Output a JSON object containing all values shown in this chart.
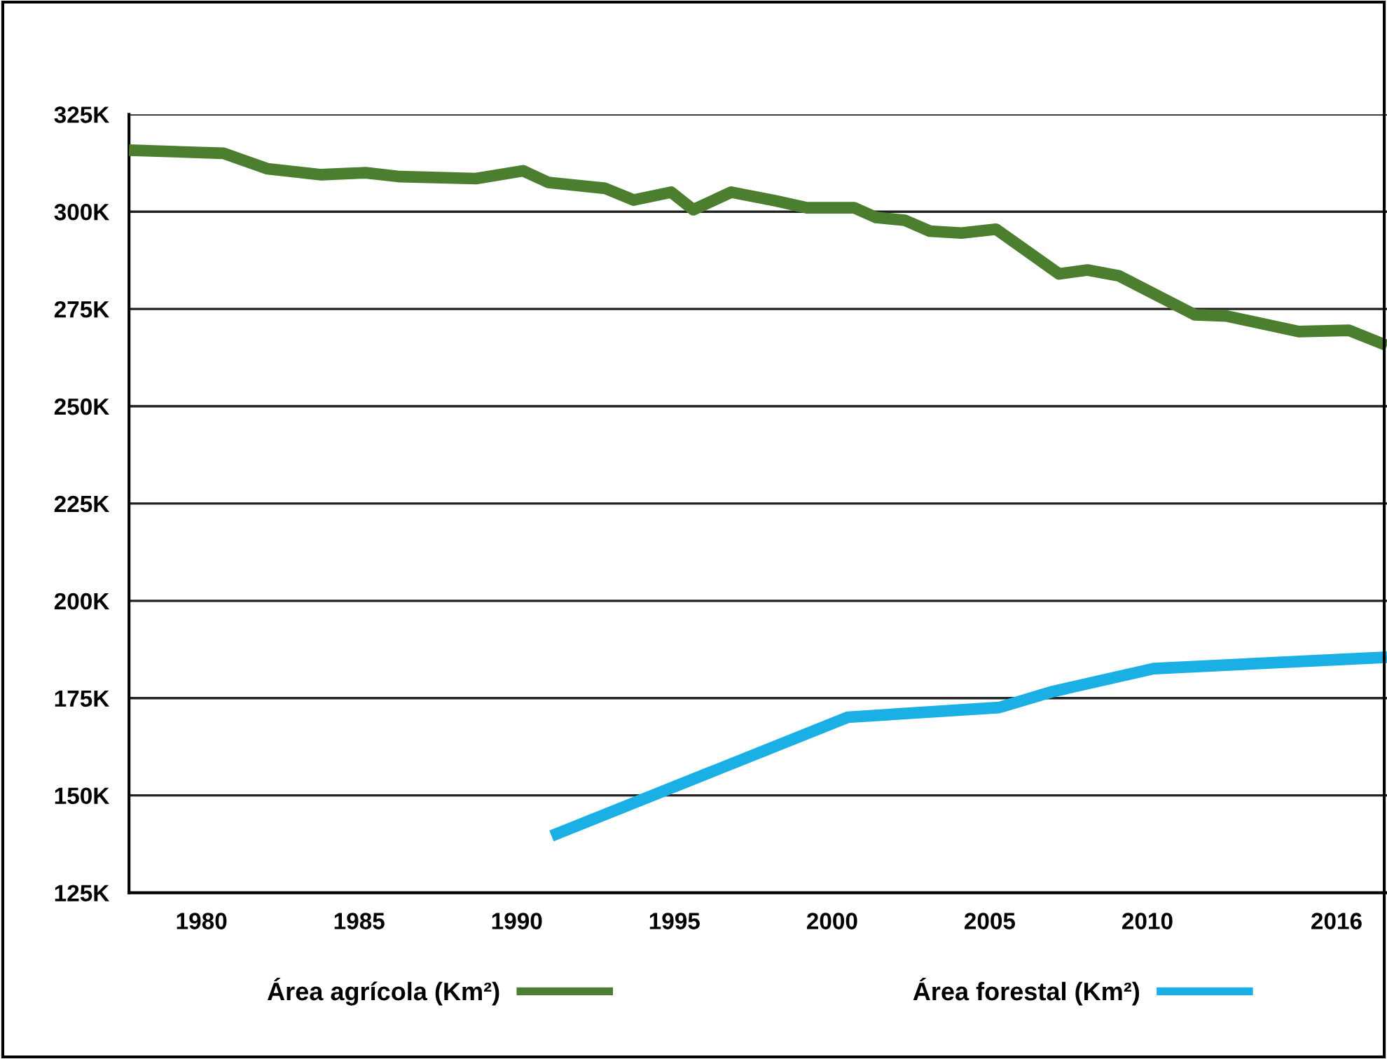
{
  "chart_data": {
    "type": "line",
    "xlim": [
      1977.7,
      2017.6
    ],
    "ylim": [
      125000,
      325000
    ],
    "xticks": [
      1980,
      1985,
      1990,
      1995,
      2000,
      2005,
      2010,
      2016
    ],
    "yticks": [
      {
        "value": 125000,
        "label": "125K"
      },
      {
        "value": 150000,
        "label": "150K"
      },
      {
        "value": 175000,
        "label": "175K"
      },
      {
        "value": 200000,
        "label": "200K"
      },
      {
        "value": 225000,
        "label": "225K"
      },
      {
        "value": 250000,
        "label": "250K"
      },
      {
        "value": 275000,
        "label": "275K"
      },
      {
        "value": 300000,
        "label": "300K"
      },
      {
        "value": 325000,
        "label": "325K"
      }
    ],
    "grid": "y",
    "legend": "bottom",
    "marker": "none",
    "line_style": "solid",
    "series": [
      {
        "name": "Área agrícola (Km²)",
        "color": "#4b7f2f",
        "x": [
          1977.7,
          1980.7,
          1982.1,
          1983.8,
          1985.2,
          1986.3,
          1988.7,
          1990.2,
          1991.0,
          1992.8,
          1993.7,
          1994.9,
          1995.6,
          1996.8,
          1998.2,
          1999.2,
          2000.7,
          2001.4,
          2002.3,
          2003.1,
          2004.1,
          2005.2,
          2007.2,
          2008.1,
          2009.1,
          2011.5,
          2012.5,
          2014.8,
          2016.4,
          2017.6
        ],
        "values": [
          315800,
          315000,
          311000,
          309500,
          310000,
          309000,
          308500,
          310500,
          307500,
          306000,
          303000,
          305000,
          300500,
          305000,
          302800,
          301000,
          301000,
          298500,
          297800,
          295000,
          294500,
          295500,
          284000,
          285000,
          283500,
          273500,
          273200,
          269200,
          269500,
          265600
        ]
      },
      {
        "name": "Área forestal (Km²)",
        "color": "#1ab0e6",
        "x": [
          1991.1,
          2000.5,
          2005.3,
          2007.0,
          2010.2,
          2017.6
        ],
        "values": [
          139600,
          170100,
          172600,
          176700,
          182600,
          185500
        ]
      }
    ]
  }
}
